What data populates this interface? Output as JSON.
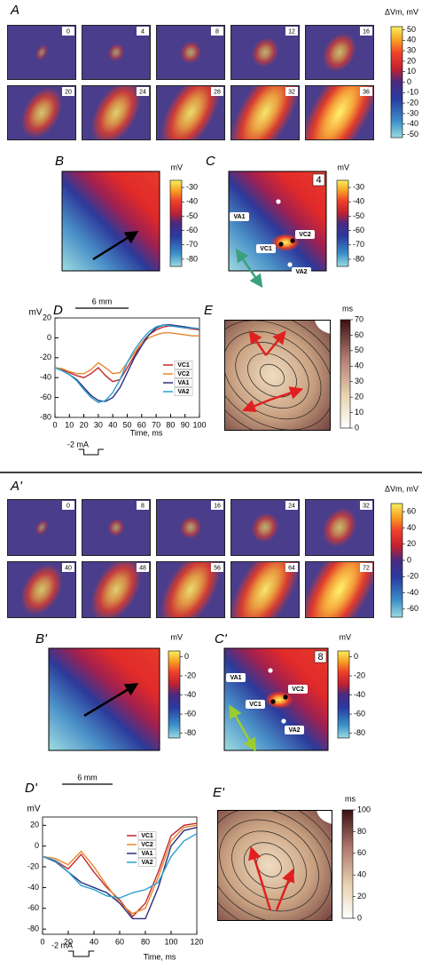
{
  "chart_data": [
    {
      "type": "line",
      "title": "D",
      "xlabel": "Time, ms",
      "ylabel": "mV",
      "annotations": [
        "-2 mA"
      ],
      "x": [
        0,
        5,
        10,
        15,
        20,
        25,
        30,
        35,
        40,
        45,
        50,
        55,
        60,
        65,
        70,
        75,
        80,
        85,
        90,
        95,
        100
      ],
      "xlim": [
        0,
        100
      ],
      "xticks": [
        0,
        10,
        20,
        30,
        40,
        50,
        60,
        70,
        80,
        90,
        100
      ],
      "ylim": [
        -80,
        20
      ],
      "yticks": [
        20,
        0,
        -20,
        -40,
        -60,
        -80
      ],
      "series": [
        {
          "name": "VC1",
          "color": "#c0282d",
          "values": [
            -30,
            -32,
            -35,
            -38,
            -40,
            -36,
            -30,
            -38,
            -44,
            -42,
            -30,
            -18,
            -5,
            3,
            8,
            11,
            12,
            11,
            10,
            9,
            8
          ]
        },
        {
          "name": "VC2",
          "color": "#e8872b",
          "values": [
            -30,
            -31,
            -34,
            -36,
            -36,
            -32,
            -25,
            -30,
            -36,
            -35,
            -25,
            -15,
            -5,
            0,
            3,
            5,
            5,
            4,
            3,
            2,
            2
          ]
        },
        {
          "name": "VA1",
          "color": "#2b2f7a",
          "values": [
            -30,
            -33,
            -37,
            -42,
            -50,
            -58,
            -63,
            -64,
            -60,
            -50,
            -35,
            -20,
            -8,
            3,
            10,
            13,
            13,
            12,
            11,
            10,
            9
          ]
        },
        {
          "name": "VA2",
          "color": "#2aa0d0",
          "values": [
            -30,
            -33,
            -37,
            -43,
            -52,
            -60,
            -65,
            -63,
            -55,
            -42,
            -25,
            -12,
            -2,
            6,
            11,
            13,
            12,
            11,
            10,
            10,
            9
          ]
        }
      ]
    },
    {
      "type": "line",
      "title": "D'",
      "xlabel": "Time, ms",
      "ylabel": "mV",
      "annotations": [
        "-2 mA"
      ],
      "x": [
        0,
        10,
        20,
        30,
        40,
        50,
        60,
        70,
        80,
        90,
        100,
        110,
        120
      ],
      "xlim": [
        0,
        120
      ],
      "xticks": [
        0,
        20,
        40,
        60,
        80,
        100,
        120
      ],
      "ylim": [
        -85,
        28
      ],
      "yticks": [
        20,
        0,
        -20,
        -40,
        -60,
        -80
      ],
      "series": [
        {
          "name": "VC1",
          "color": "#c0282d",
          "values": [
            -10,
            -14,
            -22,
            -8,
            -25,
            -40,
            -52,
            -68,
            -55,
            -25,
            10,
            20,
            22
          ]
        },
        {
          "name": "VC2",
          "color": "#e8872b",
          "values": [
            -10,
            -12,
            -18,
            -5,
            -20,
            -38,
            -55,
            -65,
            -60,
            -30,
            5,
            18,
            20
          ]
        },
        {
          "name": "VA1",
          "color": "#2b2f7a",
          "values": [
            -10,
            -15,
            -25,
            -35,
            -40,
            -45,
            -55,
            -70,
            -70,
            -40,
            0,
            15,
            18
          ]
        },
        {
          "name": "VA2",
          "color": "#2aa0d0",
          "values": [
            -10,
            -14,
            -25,
            -38,
            -42,
            -48,
            -50,
            -45,
            -42,
            -35,
            -10,
            5,
            12
          ]
        }
      ]
    }
  ],
  "panels": {
    "A": {
      "letter": "A",
      "frames": [
        0,
        4,
        8,
        12,
        16,
        20,
        24,
        28,
        32,
        36
      ],
      "colorbar": {
        "label": "ΔVm, mV",
        "lim": [
          -53,
          53
        ],
        "ticks": [
          50,
          40,
          30,
          20,
          10,
          0,
          -10,
          -20,
          -30,
          -40,
          -50
        ]
      }
    },
    "B": {
      "letter": "B",
      "colorbar": {
        "label": "mV",
        "lim": [
          -85,
          -25
        ],
        "ticks": [
          -30,
          -40,
          -50,
          -60,
          -70,
          -80
        ]
      }
    },
    "C": {
      "letter": "C",
      "frame": 4,
      "electrodes": [
        "VA1",
        "VC1",
        "VC2",
        "VA2"
      ],
      "colorbar": {
        "label": "mV",
        "lim": [
          -85,
          -25
        ],
        "ticks": [
          -30,
          -40,
          -50,
          -60,
          -70,
          -80
        ]
      }
    },
    "scale": "6 mm",
    "E": {
      "letter": "E",
      "colorbar": {
        "label": "ms",
        "lim": [
          0,
          70
        ],
        "ticks": [
          70,
          60,
          50,
          40,
          30,
          20,
          10,
          0
        ]
      }
    },
    "A2": {
      "letter": "A'",
      "frames": [
        0,
        8,
        16,
        24,
        32,
        40,
        48,
        56,
        64,
        72
      ],
      "colorbar": {
        "label": "ΔVm, mV",
        "lim": [
          -70,
          70
        ],
        "ticks": [
          60,
          40,
          20,
          0,
          -20,
          -40,
          -60
        ]
      }
    },
    "B2": {
      "letter": "B'",
      "colorbar": {
        "label": "mV",
        "lim": [
          -85,
          6
        ],
        "ticks": [
          0,
          -20,
          -40,
          -60,
          -80
        ]
      }
    },
    "C2": {
      "letter": "C'",
      "frame": 8,
      "electrodes": [
        "VA1",
        "VC1",
        "VC2",
        "VA2"
      ],
      "colorbar": {
        "label": "mV",
        "lim": [
          -85,
          6
        ],
        "ticks": [
          0,
          -20,
          -40,
          -60,
          -80
        ]
      }
    },
    "scale2": "6 mm",
    "E2": {
      "letter": "E'",
      "colorbar": {
        "label": "ms",
        "lim": [
          0,
          100
        ],
        "ticks": [
          100,
          80,
          60,
          40,
          20,
          0
        ]
      }
    }
  }
}
